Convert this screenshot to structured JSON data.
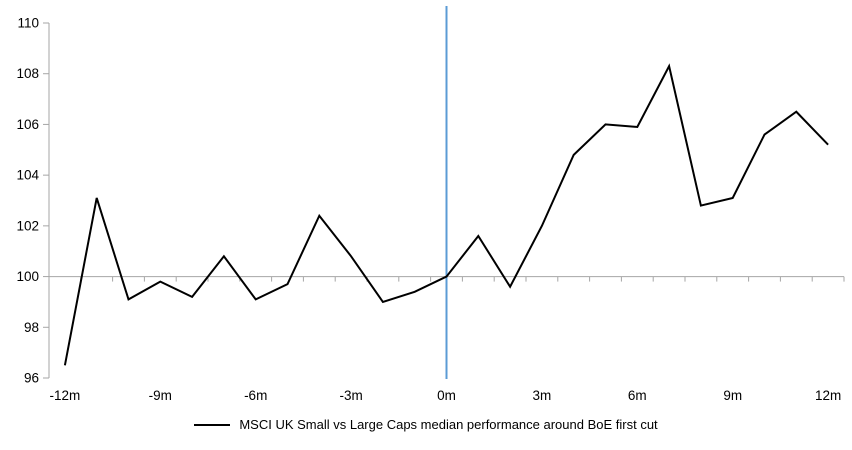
{
  "chart_data": {
    "type": "line",
    "title": "",
    "x": [
      -12,
      -11,
      -10,
      -9,
      -8,
      -7,
      -6,
      -5,
      -4,
      -3,
      -2,
      -1,
      0,
      1,
      2,
      3,
      4,
      5,
      6,
      7,
      8,
      9,
      10,
      11,
      12
    ],
    "x_tick_labels": [
      "-12m",
      "-9m",
      "-6m",
      "-3m",
      "0m",
      "3m",
      "6m",
      "9m",
      "12m"
    ],
    "x_label_interval_months": 3,
    "ylim": [
      96,
      110
    ],
    "y_ticks": [
      110,
      108,
      106,
      104,
      102,
      100,
      98,
      96
    ],
    "baseline_value": 100,
    "grid": "none",
    "legend_position": "bottom",
    "axis_color": "#A6A6A6",
    "background_color": "#FFFFFF",
    "event_line": {
      "x_value": 0,
      "color": "#5B9BD5"
    },
    "series": [
      {
        "name": "MSCI UK Small vs Large Caps median performance around BoE first cut",
        "color": "#000000",
        "values": [
          96.5,
          103.1,
          99.1,
          99.8,
          99.2,
          100.8,
          99.1,
          99.7,
          102.4,
          100.8,
          99.0,
          99.4,
          100.0,
          101.6,
          99.6,
          102.0,
          104.8,
          106.0,
          105.9,
          108.3,
          102.8,
          103.1,
          105.6,
          106.5,
          105.2
        ]
      }
    ]
  }
}
